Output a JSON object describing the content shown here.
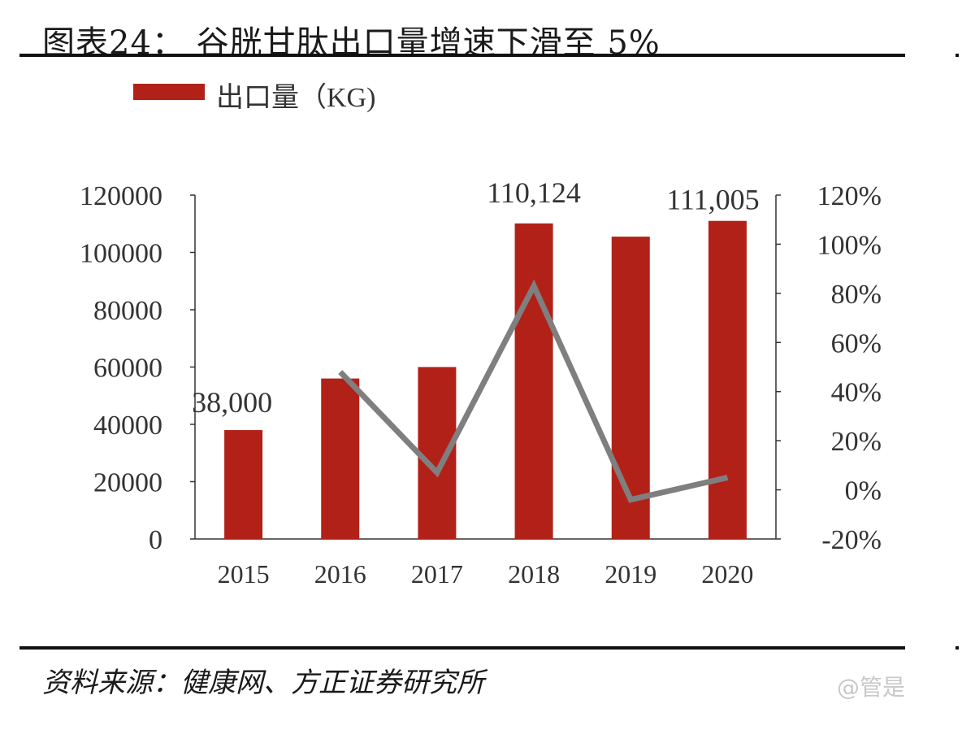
{
  "page": {
    "title": "图表24：  谷胱甘肽出口量增速下滑至 5%",
    "source": "资料来源：健康网、方正证券研究所",
    "watermark": "@管是"
  },
  "chart_data": {
    "type": "bar",
    "categories": [
      "2015",
      "2016",
      "2017",
      "2018",
      "2019",
      "2020"
    ],
    "series": [
      {
        "name": "出口量（KG)",
        "type": "bar",
        "axis": "left",
        "color": "#b22118",
        "values": [
          38000,
          56000,
          60000,
          110124,
          105500,
          111005
        ]
      },
      {
        "type": "line",
        "axis": "right",
        "color": "#7f7f7f",
        "values": [
          null,
          0.48,
          0.07,
          0.83,
          -0.04,
          0.05
        ]
      }
    ],
    "data_labels": [
      {
        "index": 0,
        "text": "38,000"
      },
      {
        "index": 3,
        "text": "110,124"
      },
      {
        "index": 5,
        "text": "111,005"
      }
    ],
    "y_left": {
      "ylim": [
        0,
        120000
      ],
      "ticks": [
        "0",
        "20000",
        "40000",
        "60000",
        "80000",
        "100000",
        "120000"
      ]
    },
    "y_right": {
      "ylim": [
        -0.2,
        1.2
      ],
      "ticks": [
        "-20%",
        "0%",
        "20%",
        "40%",
        "60%",
        "80%",
        "100%",
        "120%"
      ]
    },
    "legend_position": "top-left",
    "grid": false
  }
}
